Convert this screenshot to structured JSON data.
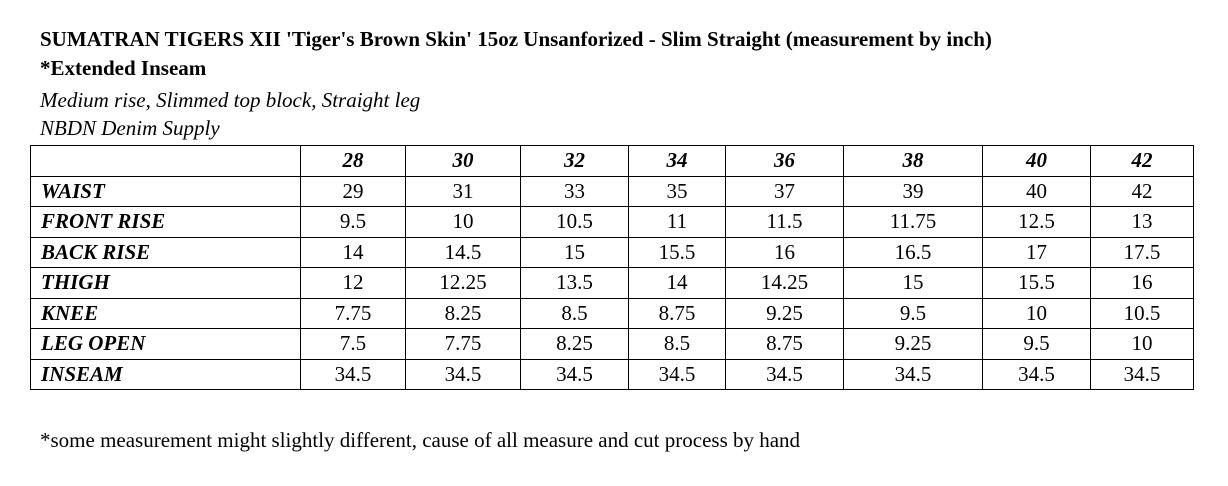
{
  "header": {
    "title": "SUMATRAN TIGERS XII 'Tiger's Brown Skin' 15oz Unsanforized - Slim Straight (measurement by inch)",
    "subtitle": "*Extended Inseam",
    "description": "Medium rise, Slimmed top block, Straight leg",
    "brand": "NBDN Denim Supply"
  },
  "table": {
    "columns": [
      "28",
      "30",
      "32",
      "34",
      "36",
      "38",
      "40",
      "42"
    ],
    "rows": [
      [
        "WAIST",
        "29",
        "31",
        "33",
        "35",
        "37",
        "39",
        "40",
        "42"
      ],
      [
        "FRONT RISE",
        "9.5",
        "10",
        "10.5",
        "11",
        "11.5",
        "11.75",
        "12.5",
        "13"
      ],
      [
        "BACK RISE",
        "14",
        "14.5",
        "15",
        "15.5",
        "16",
        "16.5",
        "17",
        "17.5"
      ],
      [
        "THIGH",
        "12",
        "12.25",
        "13.5",
        "14",
        "14.25",
        "15",
        "15.5",
        "16"
      ],
      [
        "KNEE",
        "7.75",
        "8.25",
        "8.5",
        "8.75",
        "9.25",
        "9.5",
        "10",
        "10.5"
      ],
      [
        "LEG OPEN",
        "7.5",
        "7.75",
        "8.25",
        "8.5",
        "8.75",
        "9.25",
        "9.5",
        "10"
      ],
      [
        "INSEAM",
        "34.5",
        "34.5",
        "34.5",
        "34.5",
        "34.5",
        "34.5",
        "34.5",
        "34.5"
      ]
    ]
  },
  "footnote": "*some measurement might slightly different, cause of all measure and cut process by hand"
}
